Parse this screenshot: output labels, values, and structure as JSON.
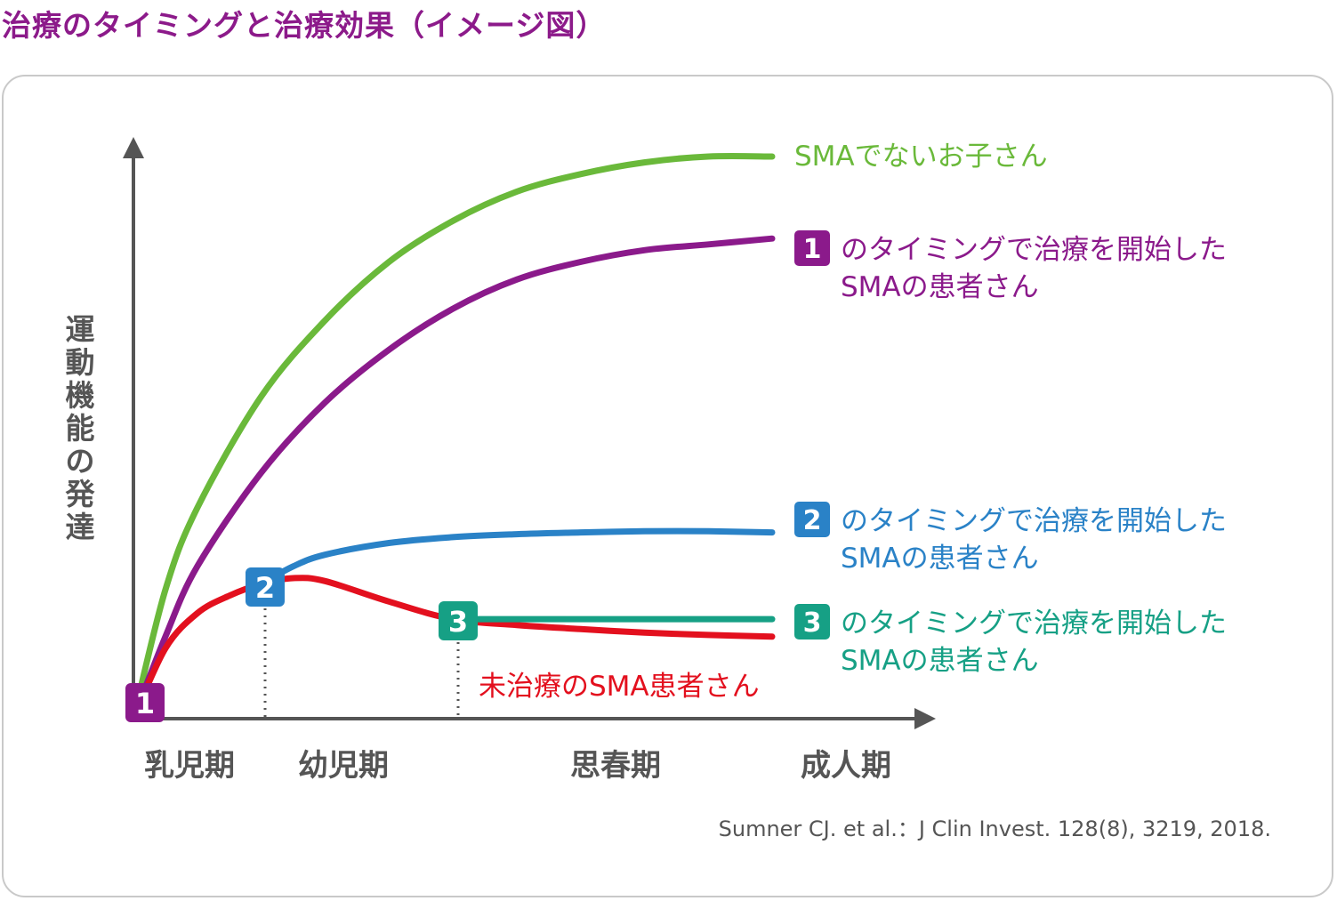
{
  "title": "治療のタイミングと治療効果（イメージ図）",
  "citation": "Sumner CJ. et al.：J Clin Invest. 128(8), 3219, 2018.",
  "colors": {
    "green": "#6ab93a",
    "purple": "#8b1a8b",
    "blue": "#2a82c7",
    "teal": "#16a085",
    "red": "#e3101e",
    "axis": "#555555"
  },
  "chart_data": {
    "type": "line",
    "ylabel": "運動機能の発達",
    "xlabel": "",
    "x_categories": [
      "乳児期",
      "幼児期",
      "思春期",
      "成人期"
    ],
    "markers": [
      {
        "label": "1",
        "period": "乳児期",
        "color": "#8b1a8b"
      },
      {
        "label": "2",
        "period": "幼児期",
        "color": "#2a82c7"
      },
      {
        "label": "3",
        "period": "幼児期",
        "color": "#16a085"
      }
    ],
    "series": [
      {
        "key": "green",
        "name": "SMAでないお子さん",
        "badge": "",
        "name_line2": "",
        "x": [
          0,
          0.5,
          1,
          2,
          3,
          4,
          5,
          6,
          7,
          8,
          9,
          10
        ],
        "y": [
          0,
          22,
          36,
          55,
          68,
          78,
          85,
          90,
          93,
          95,
          96,
          96
        ]
      },
      {
        "key": "purple",
        "name": "のタイミングで治療を開始した",
        "badge": "1",
        "name_line2": "SMAの患者さん",
        "x": [
          0,
          0.5,
          1,
          2,
          3,
          4,
          5,
          6,
          7,
          8,
          9,
          10
        ],
        "y": [
          0,
          14,
          26,
          42,
          54,
          63,
          70,
          75,
          78,
          80,
          81,
          82
        ]
      },
      {
        "key": "blue",
        "name": "のタイミングで治療を開始した",
        "badge": "2",
        "name_line2": "SMAの患者さん",
        "x": [
          2,
          2.5,
          3,
          4,
          5,
          6,
          7,
          8,
          9,
          10
        ],
        "y": [
          23,
          26,
          28,
          30,
          31,
          31.5,
          31.8,
          32,
          32,
          31.8
        ]
      },
      {
        "key": "teal",
        "name": "のタイミングで治療を開始した",
        "badge": "3",
        "name_line2": "SMAの患者さん",
        "x": [
          5,
          6,
          7,
          8,
          9,
          10
        ],
        "y": [
          17,
          17,
          17,
          17,
          17,
          17
        ]
      },
      {
        "key": "red",
        "name": "未治療のSMA患者さん",
        "badge": "",
        "name_line2": "",
        "x": [
          0,
          0.5,
          1,
          1.5,
          2,
          2.5,
          3,
          4,
          5,
          6,
          7,
          8,
          9,
          10
        ],
        "y": [
          0,
          12,
          18,
          21,
          23,
          24,
          23.5,
          20,
          17,
          16,
          15.3,
          14.7,
          14.3,
          14
        ]
      }
    ]
  }
}
